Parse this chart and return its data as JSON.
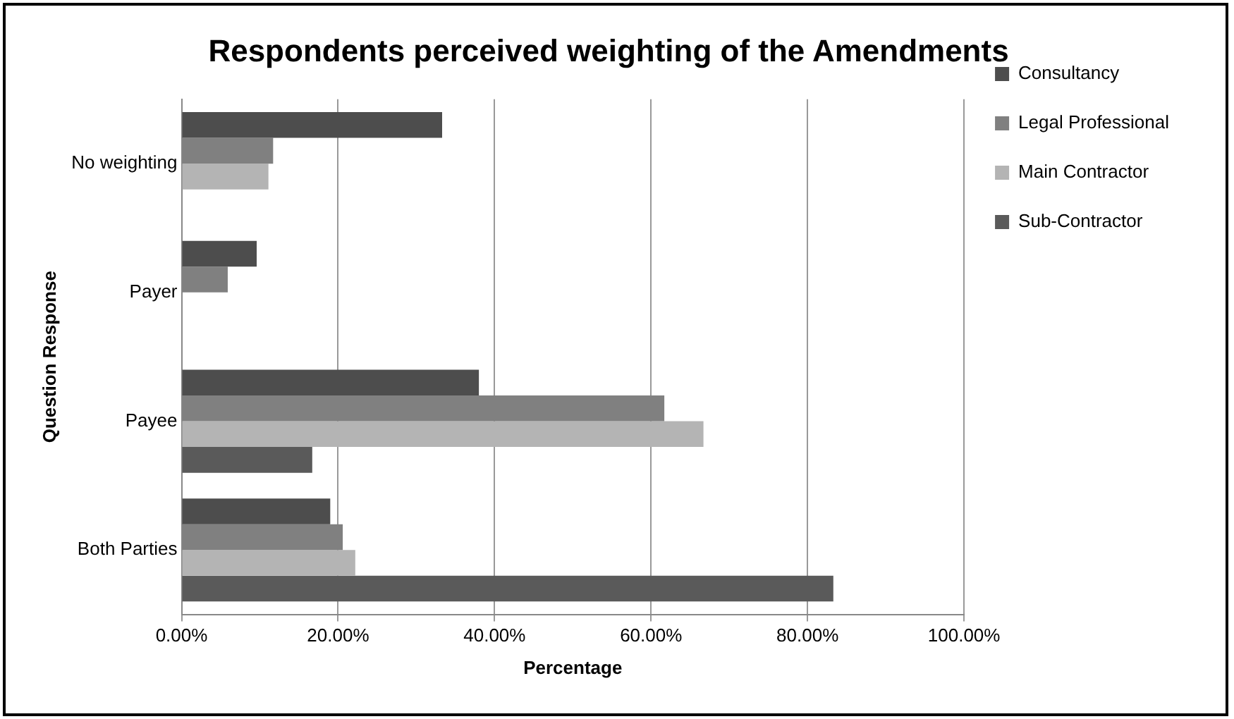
{
  "chart_data": {
    "type": "bar",
    "orientation": "horizontal",
    "title": "Respondents perceived weighting of the Amendments",
    "xlabel": "Percentage",
    "ylabel": "Question Response",
    "categories": [
      "No weighting",
      "Payer",
      "Payee",
      "Both Parties"
    ],
    "series": [
      {
        "name": "Consultancy",
        "color": "#4d4d4d",
        "values": [
          33.3,
          9.6,
          38.0,
          19.0
        ]
      },
      {
        "name": "Legal Professional",
        "color": "#808080",
        "values": [
          11.7,
          5.9,
          61.7,
          20.6
        ]
      },
      {
        "name": "Main Contractor",
        "color": "#b4b4b4",
        "values": [
          11.1,
          0,
          66.7,
          22.2
        ]
      },
      {
        "name": "Sub-Contractor",
        "color": "#5a5a5a",
        "values": [
          0,
          0,
          16.7,
          83.3
        ]
      }
    ],
    "xlim": [
      0,
      100
    ],
    "xticks": [
      {
        "value": 0,
        "label": "0.00%"
      },
      {
        "value": 20,
        "label": "20.00%"
      },
      {
        "value": 40,
        "label": "40.00%"
      },
      {
        "value": 60,
        "label": "60.00%"
      },
      {
        "value": 80,
        "label": "80.00%"
      },
      {
        "value": 100,
        "label": "100.00%"
      }
    ],
    "grid": "x",
    "legend": "right"
  }
}
